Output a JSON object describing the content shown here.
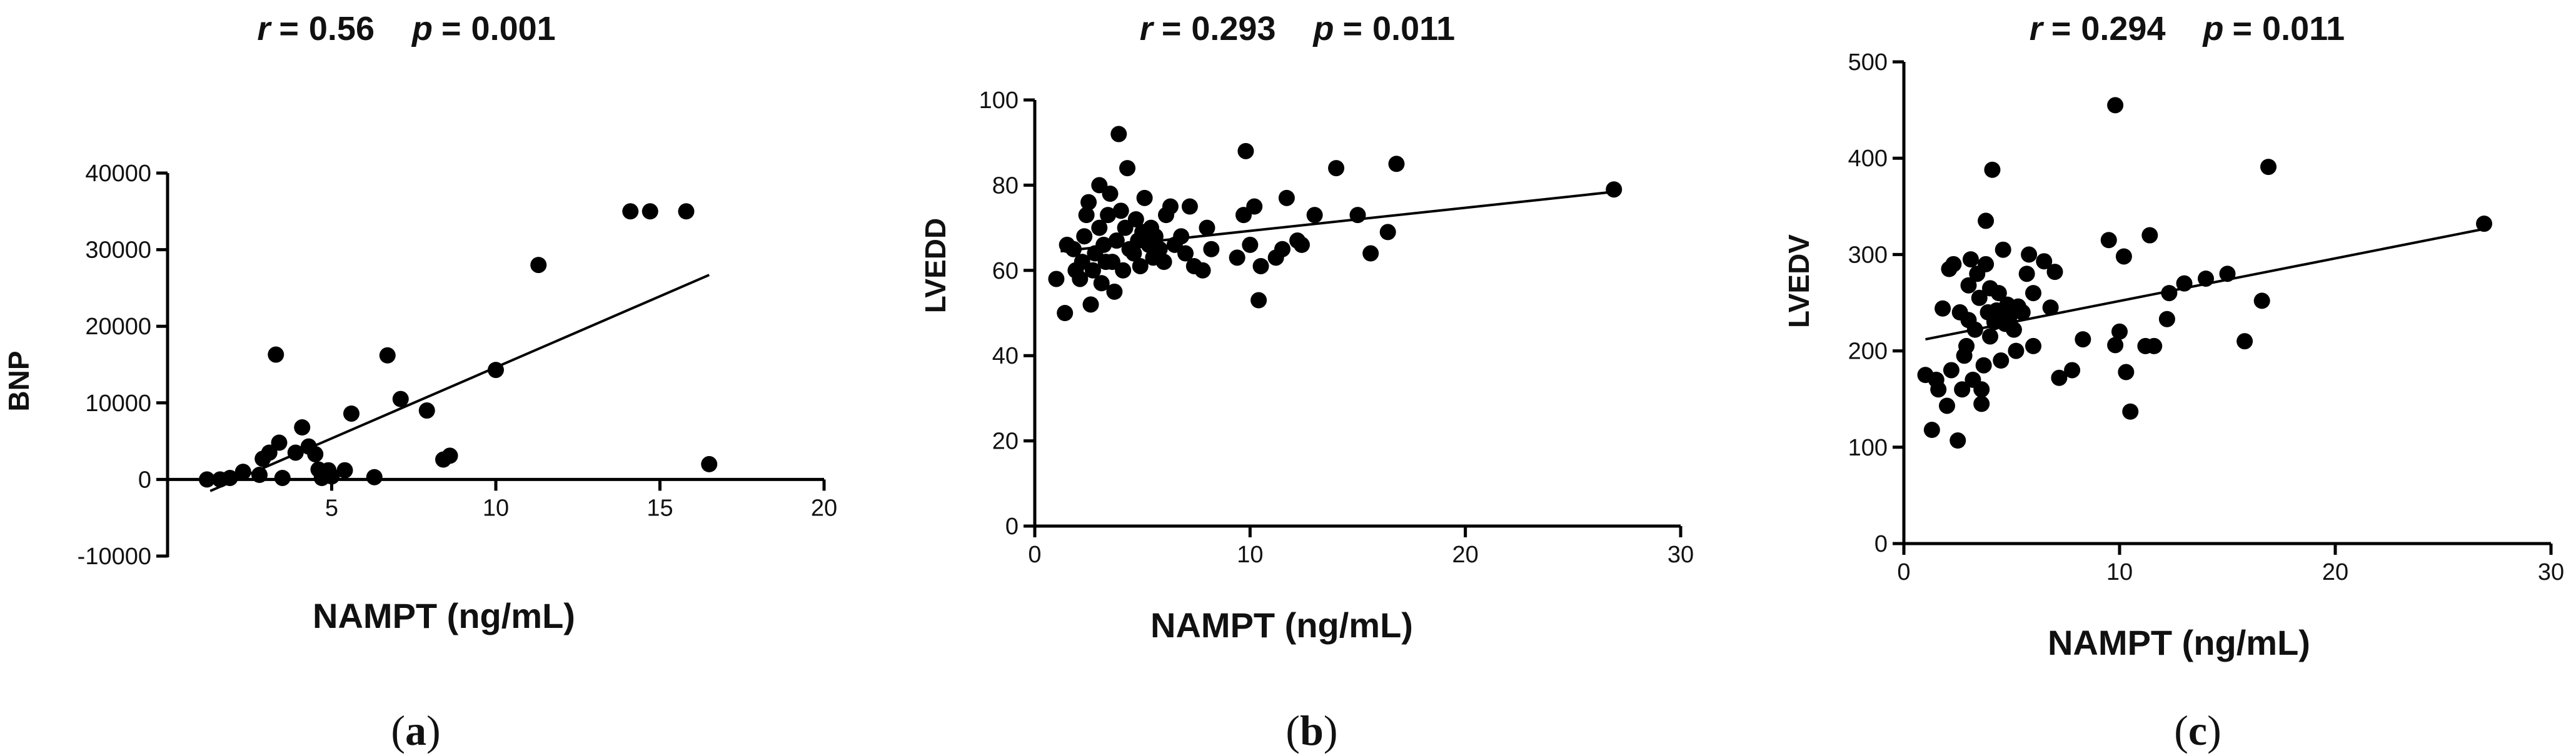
{
  "chart_data": [
    {
      "type": "scatter",
      "r_label": "r",
      "r_value": "0.56",
      "p_label": "p",
      "p_value": "0.001",
      "xlabel": "NAMPT  (ng/mL)",
      "ylabel": "BNP",
      "xlim": [
        0,
        20
      ],
      "ylim": [
        -10000,
        40000
      ],
      "xticks": [
        "5",
        "10",
        "15",
        "20"
      ],
      "yticks": [
        "-10000",
        "0",
        "10000",
        "20000",
        "30000",
        "40000"
      ],
      "panel_label": "a",
      "fit": {
        "x1": 1.3,
        "y1": -1500,
        "x2": 16.5,
        "y2": 26700
      },
      "points": [
        {
          "x": 1.2,
          "y": 0
        },
        {
          "x": 1.6,
          "y": 0
        },
        {
          "x": 1.9,
          "y": 200
        },
        {
          "x": 2.3,
          "y": 1000
        },
        {
          "x": 2.8,
          "y": 600
        },
        {
          "x": 2.9,
          "y": 2700
        },
        {
          "x": 3.1,
          "y": 3500
        },
        {
          "x": 3.3,
          "y": 16300
        },
        {
          "x": 3.4,
          "y": 4800
        },
        {
          "x": 3.5,
          "y": 200
        },
        {
          "x": 3.9,
          "y": 3500
        },
        {
          "x": 4.1,
          "y": 6800
        },
        {
          "x": 4.3,
          "y": 4300
        },
        {
          "x": 4.5,
          "y": 3300
        },
        {
          "x": 4.6,
          "y": 1300
        },
        {
          "x": 4.7,
          "y": 200
        },
        {
          "x": 4.9,
          "y": 1200
        },
        {
          "x": 5.0,
          "y": 400
        },
        {
          "x": 5.4,
          "y": 1200
        },
        {
          "x": 5.6,
          "y": 8600
        },
        {
          "x": 6.3,
          "y": 300
        },
        {
          "x": 6.7,
          "y": 16200
        },
        {
          "x": 7.1,
          "y": 10500
        },
        {
          "x": 7.9,
          "y": 9000
        },
        {
          "x": 8.4,
          "y": 2600
        },
        {
          "x": 8.6,
          "y": 3100
        },
        {
          "x": 10.0,
          "y": 14300
        },
        {
          "x": 11.3,
          "y": 28000
        },
        {
          "x": 14.1,
          "y": 35000
        },
        {
          "x": 14.7,
          "y": 35000
        },
        {
          "x": 15.8,
          "y": 35000
        },
        {
          "x": 16.5,
          "y": 2000
        }
      ]
    },
    {
      "type": "scatter",
      "r_label": "r",
      "r_value": "0.293",
      "p_label": "p",
      "p_value": "0.011",
      "xlabel": "NAMPT  (ng/mL)",
      "ylabel": "LVEDD",
      "xlim": [
        0,
        30
      ],
      "ylim": [
        0,
        100
      ],
      "xticks": [
        "0",
        "10",
        "20",
        "30"
      ],
      "yticks": [
        "0",
        "20",
        "40",
        "60",
        "80",
        "100"
      ],
      "panel_label": "b",
      "fit": {
        "x1": 1.2,
        "y1": 64.5,
        "x2": 27.0,
        "y2": 78.5
      },
      "points": [
        {
          "x": 1.0,
          "y": 58
        },
        {
          "x": 1.4,
          "y": 50
        },
        {
          "x": 1.5,
          "y": 66
        },
        {
          "x": 1.8,
          "y": 65
        },
        {
          "x": 1.9,
          "y": 60
        },
        {
          "x": 2.1,
          "y": 58
        },
        {
          "x": 2.2,
          "y": 62
        },
        {
          "x": 2.3,
          "y": 68
        },
        {
          "x": 2.4,
          "y": 73
        },
        {
          "x": 2.5,
          "y": 76
        },
        {
          "x": 2.6,
          "y": 52
        },
        {
          "x": 2.7,
          "y": 60
        },
        {
          "x": 2.8,
          "y": 64
        },
        {
          "x": 3.0,
          "y": 80
        },
        {
          "x": 3.0,
          "y": 70
        },
        {
          "x": 3.1,
          "y": 57
        },
        {
          "x": 3.2,
          "y": 66
        },
        {
          "x": 3.3,
          "y": 62
        },
        {
          "x": 3.4,
          "y": 73
        },
        {
          "x": 3.5,
          "y": 78
        },
        {
          "x": 3.6,
          "y": 62
        },
        {
          "x": 3.7,
          "y": 55
        },
        {
          "x": 3.8,
          "y": 67
        },
        {
          "x": 3.9,
          "y": 92
        },
        {
          "x": 4.0,
          "y": 74
        },
        {
          "x": 4.1,
          "y": 60
        },
        {
          "x": 4.2,
          "y": 70
        },
        {
          "x": 4.3,
          "y": 84
        },
        {
          "x": 4.4,
          "y": 65
        },
        {
          "x": 4.6,
          "y": 64
        },
        {
          "x": 4.7,
          "y": 72
        },
        {
          "x": 4.8,
          "y": 67
        },
        {
          "x": 4.9,
          "y": 61
        },
        {
          "x": 5.0,
          "y": 69
        },
        {
          "x": 5.1,
          "y": 77
        },
        {
          "x": 5.3,
          "y": 66
        },
        {
          "x": 5.4,
          "y": 70
        },
        {
          "x": 5.5,
          "y": 63
        },
        {
          "x": 5.6,
          "y": 68
        },
        {
          "x": 5.8,
          "y": 65
        },
        {
          "x": 6.0,
          "y": 62
        },
        {
          "x": 6.1,
          "y": 73
        },
        {
          "x": 6.3,
          "y": 75
        },
        {
          "x": 6.5,
          "y": 66
        },
        {
          "x": 6.8,
          "y": 68
        },
        {
          "x": 7.0,
          "y": 64
        },
        {
          "x": 7.2,
          "y": 75
        },
        {
          "x": 7.4,
          "y": 61
        },
        {
          "x": 7.8,
          "y": 60
        },
        {
          "x": 8.0,
          "y": 70
        },
        {
          "x": 8.2,
          "y": 65
        },
        {
          "x": 9.4,
          "y": 63
        },
        {
          "x": 9.7,
          "y": 73
        },
        {
          "x": 9.8,
          "y": 88
        },
        {
          "x": 10.0,
          "y": 66
        },
        {
          "x": 10.2,
          "y": 75
        },
        {
          "x": 10.4,
          "y": 53
        },
        {
          "x": 10.5,
          "y": 61
        },
        {
          "x": 11.2,
          "y": 63
        },
        {
          "x": 11.5,
          "y": 65
        },
        {
          "x": 11.7,
          "y": 77
        },
        {
          "x": 12.2,
          "y": 67
        },
        {
          "x": 12.4,
          "y": 66
        },
        {
          "x": 13.0,
          "y": 73
        },
        {
          "x": 14.0,
          "y": 84
        },
        {
          "x": 15.0,
          "y": 73
        },
        {
          "x": 15.6,
          "y": 64
        },
        {
          "x": 16.4,
          "y": 69
        },
        {
          "x": 16.8,
          "y": 85
        },
        {
          "x": 26.9,
          "y": 79
        }
      ]
    },
    {
      "type": "scatter",
      "r_label": "r",
      "r_value": "0.294",
      "p_label": "p",
      "p_value": "0.011",
      "xlabel": "NAMPT  (ng/mL)",
      "ylabel": "LVEDV",
      "xlim": [
        0,
        30
      ],
      "ylim": [
        0,
        500
      ],
      "xticks": [
        "0",
        "10",
        "20",
        "30"
      ],
      "yticks": [
        "0",
        "100",
        "200",
        "300",
        "400",
        "500"
      ],
      "panel_label": "c",
      "fit": {
        "x1": 1.0,
        "y1": 212,
        "x2": 27.0,
        "y2": 327
      },
      "points": [
        {
          "x": 1.0,
          "y": 175
        },
        {
          "x": 1.3,
          "y": 118
        },
        {
          "x": 1.5,
          "y": 170
        },
        {
          "x": 1.6,
          "y": 160
        },
        {
          "x": 1.8,
          "y": 244
        },
        {
          "x": 2.0,
          "y": 143
        },
        {
          "x": 2.1,
          "y": 285
        },
        {
          "x": 2.2,
          "y": 180
        },
        {
          "x": 2.3,
          "y": 290
        },
        {
          "x": 2.5,
          "y": 107
        },
        {
          "x": 2.6,
          "y": 240
        },
        {
          "x": 2.7,
          "y": 160
        },
        {
          "x": 2.8,
          "y": 195
        },
        {
          "x": 2.9,
          "y": 205
        },
        {
          "x": 3.0,
          "y": 268
        },
        {
          "x": 3.0,
          "y": 232
        },
        {
          "x": 3.1,
          "y": 295
        },
        {
          "x": 3.2,
          "y": 170
        },
        {
          "x": 3.3,
          "y": 222
        },
        {
          "x": 3.4,
          "y": 280
        },
        {
          "x": 3.5,
          "y": 255
        },
        {
          "x": 3.6,
          "y": 160
        },
        {
          "x": 3.6,
          "y": 145
        },
        {
          "x": 3.7,
          "y": 185
        },
        {
          "x": 3.8,
          "y": 290
        },
        {
          "x": 3.8,
          "y": 335
        },
        {
          "x": 3.9,
          "y": 240
        },
        {
          "x": 4.0,
          "y": 265
        },
        {
          "x": 4.0,
          "y": 215
        },
        {
          "x": 4.1,
          "y": 388
        },
        {
          "x": 4.2,
          "y": 230
        },
        {
          "x": 4.3,
          "y": 242
        },
        {
          "x": 4.4,
          "y": 260
        },
        {
          "x": 4.5,
          "y": 190
        },
        {
          "x": 4.6,
          "y": 305
        },
        {
          "x": 4.7,
          "y": 228
        },
        {
          "x": 4.8,
          "y": 248
        },
        {
          "x": 4.9,
          "y": 236
        },
        {
          "x": 5.0,
          "y": 240
        },
        {
          "x": 5.1,
          "y": 222
        },
        {
          "x": 5.2,
          "y": 200
        },
        {
          "x": 5.3,
          "y": 246
        },
        {
          "x": 5.5,
          "y": 240
        },
        {
          "x": 5.7,
          "y": 280
        },
        {
          "x": 5.8,
          "y": 300
        },
        {
          "x": 6.0,
          "y": 260
        },
        {
          "x": 6.0,
          "y": 205
        },
        {
          "x": 6.5,
          "y": 293
        },
        {
          "x": 6.8,
          "y": 245
        },
        {
          "x": 7.0,
          "y": 282
        },
        {
          "x": 7.2,
          "y": 172
        },
        {
          "x": 7.8,
          "y": 180
        },
        {
          "x": 8.3,
          "y": 212
        },
        {
          "x": 9.5,
          "y": 315
        },
        {
          "x": 9.8,
          "y": 206
        },
        {
          "x": 9.8,
          "y": 455
        },
        {
          "x": 10.0,
          "y": 220
        },
        {
          "x": 10.2,
          "y": 298
        },
        {
          "x": 10.3,
          "y": 178
        },
        {
          "x": 10.5,
          "y": 137
        },
        {
          "x": 11.2,
          "y": 205
        },
        {
          "x": 11.4,
          "y": 320
        },
        {
          "x": 11.6,
          "y": 205
        },
        {
          "x": 12.2,
          "y": 233
        },
        {
          "x": 12.3,
          "y": 260
        },
        {
          "x": 13.0,
          "y": 270
        },
        {
          "x": 14.0,
          "y": 275
        },
        {
          "x": 15.0,
          "y": 280
        },
        {
          "x": 15.8,
          "y": 210
        },
        {
          "x": 16.6,
          "y": 252
        },
        {
          "x": 16.9,
          "y": 391
        },
        {
          "x": 26.9,
          "y": 332
        }
      ]
    }
  ]
}
